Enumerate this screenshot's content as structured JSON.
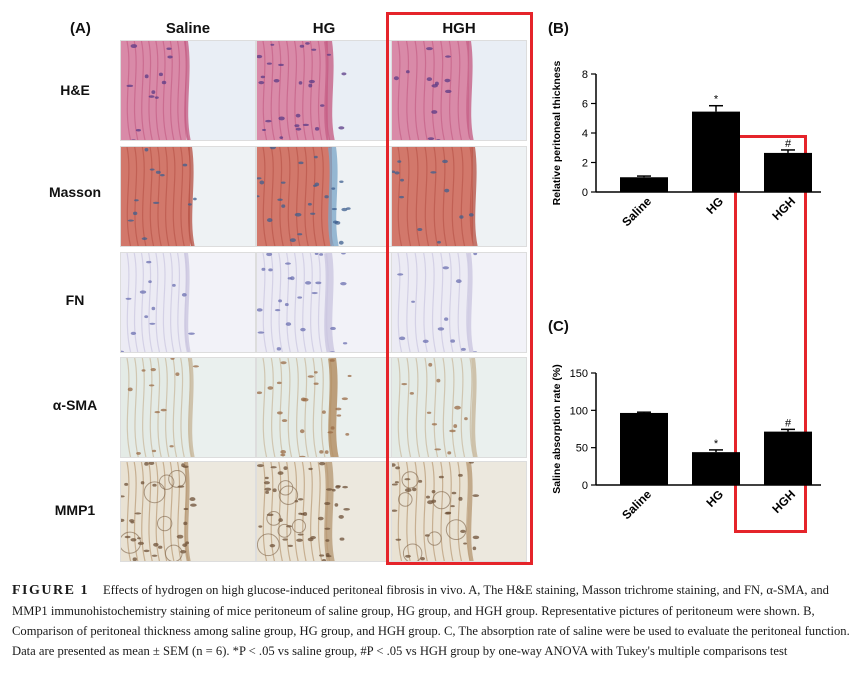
{
  "panel_a": {
    "label": "(A)",
    "columns": [
      "Saline",
      "HG",
      "HGH"
    ],
    "rows": [
      "H&E",
      "Masson",
      "FN",
      "α-SMA",
      "MMP1"
    ]
  },
  "chart_data": [
    {
      "panel_label": "(B)",
      "type": "bar",
      "categories": [
        "Saline",
        "HG",
        "HGH"
      ],
      "values": [
        1.0,
        5.45,
        2.65
      ],
      "errors": [
        0.08,
        0.4,
        0.2
      ],
      "significance": [
        "",
        "*",
        "#"
      ],
      "ylabel": "Relative peritoneal thickness",
      "ylim": [
        0,
        8
      ],
      "yticks": [
        0,
        2,
        4,
        6,
        8
      ],
      "color": "#000000"
    },
    {
      "panel_label": "(C)",
      "type": "bar",
      "categories": [
        "Saline",
        "HG",
        "HGH"
      ],
      "values": [
        96.5,
        44,
        71.5
      ],
      "errors": [
        1.0,
        3.0,
        3.0
      ],
      "significance": [
        "",
        "*",
        "#"
      ],
      "ylabel": "Saline absorption rate (%)",
      "ylim": [
        0,
        150
      ],
      "yticks": [
        0,
        50,
        100,
        150
      ],
      "color": "#000000"
    }
  ],
  "caption": {
    "figure_label": "FIGURE 1",
    "text": "Effects of hydrogen on high glucose-induced peritoneal fibrosis in vivo. A, The H&E staining, Masson trichrome staining, and FN, α-SMA, and MMP1 immunohistochemistry staining of mice peritoneum of saline group, HG group, and HGH group. Representative pictures of peritoneum were shown. B, Comparison of peritoneal thickness among saline group, HG group, and HGH group. C, The absorption rate of saline were be used to evaluate the peritoneal function. Data are presented as mean ± SEM (n = 6). *P < .05 vs saline group, #P < .05 vs HGH group by one-way ANOVA with Tukey's multiple comparisons test"
  },
  "colors": {
    "highlight": "#e5242a",
    "he_stain": "#d98aa8",
    "masson_red": "#d2786b",
    "masson_blue": "#7ea7c9",
    "ihc_bg": "#e6e6ef",
    "brown": "#9a6b45"
  }
}
